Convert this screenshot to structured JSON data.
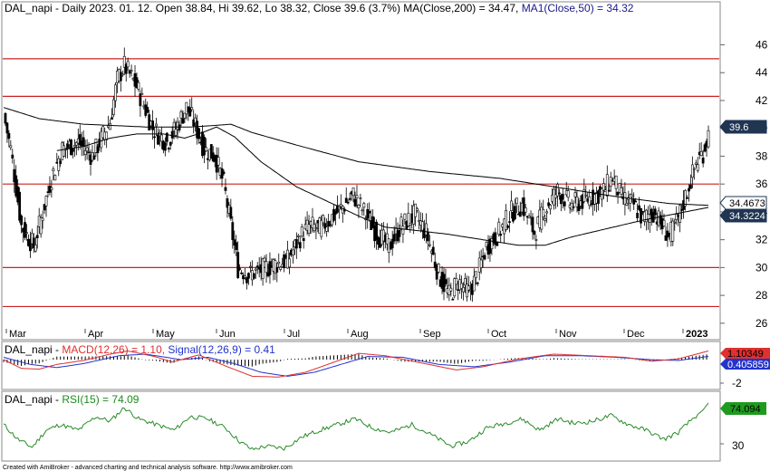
{
  "price_panel": {
    "title_prefix": "DAL_napi - Daily 2023. 01. 12. Open 38.84, Hi 39.62, Lo 38.32, Close 39.6 (3.7%) MA(Close,200) = 34.47, ",
    "title_ma50": "MA1(Close,50) = 34.32",
    "badges": [
      {
        "text": "39.6",
        "value": 39.6,
        "bg": "#1f3552",
        "fg": "#ffffff"
      },
      {
        "text": "34.4673",
        "value": 34.4673,
        "bg": "#ffffff",
        "fg": "#000000"
      },
      {
        "text": "34.3224",
        "value": 34.3224,
        "bg": "#1f3552",
        "fg": "#ffffff"
      }
    ]
  },
  "macd_panel": {
    "label_name": "DAL_napi - ",
    "label_macd": "MACD(12,26) = 1.10,",
    "label_signal": " Signal(12,26,9) = 0.41",
    "tick": "-2",
    "badges": [
      {
        "text": "1.10349",
        "bg": "#e03030",
        "fg": "#000000"
      },
      {
        "text": "0.405859",
        "bg": "#2233cc",
        "fg": "#ffffff"
      }
    ]
  },
  "rsi_panel": {
    "label_name": "DAL_napi - ",
    "label_rsi": "RSI(15) = 74.09",
    "tick": "30",
    "badge": {
      "text": "74.094",
      "bg": "#1f9a1f",
      "fg": "#000000"
    }
  },
  "footer": "Created with AmiBroker - advanced charting and technical analysis software. http://www.amibroker.com",
  "colors": {
    "support_lines": "#cc2222",
    "candles": "#000000",
    "macd": "#e03030",
    "signal": "#2233cc",
    "rsi": "#2a8a2a"
  },
  "chart_data": {
    "type": "candlestick",
    "title": "DAL_napi - Daily 2023. 01. 12. Open 38.84, Hi 39.62, Lo 38.32, Close 39.6 (3.7%) MA(Close,200) = 34.47, MA1(Close,50) = 34.32",
    "y_ticks": [
      26,
      28,
      30,
      32,
      34,
      36,
      38,
      40,
      42,
      44,
      46
    ],
    "ylim": [
      25.6,
      47.4
    ],
    "x_labels": [
      "Mar",
      "Apr",
      "May",
      "Jun",
      "Jul",
      "Aug",
      "Sep",
      "Oct",
      "Nov",
      "Dec",
      "2023"
    ],
    "horizontal_levels": [
      45.0,
      42.3,
      36.0,
      30.0,
      27.2
    ],
    "close_series": [
      {
        "index": 0,
        "value": 41.0
      },
      {
        "index": 4,
        "value": 38.5
      },
      {
        "index": 10,
        "value": 33.0
      },
      {
        "index": 17,
        "value": 31.5
      },
      {
        "index": 22,
        "value": 34.0
      },
      {
        "index": 27,
        "value": 36.5
      },
      {
        "index": 33,
        "value": 38.5
      },
      {
        "index": 42,
        "value": 39.0
      },
      {
        "index": 50,
        "value": 38.0
      },
      {
        "index": 60,
        "value": 40.5
      },
      {
        "index": 64,
        "value": 43.5
      },
      {
        "index": 68,
        "value": 44.5
      },
      {
        "index": 75,
        "value": 43.0
      },
      {
        "index": 84,
        "value": 40.0
      },
      {
        "index": 92,
        "value": 39.0
      },
      {
        "index": 97,
        "value": 40.0
      },
      {
        "index": 103,
        "value": 41.5
      },
      {
        "index": 107,
        "value": 40.5
      },
      {
        "index": 113,
        "value": 38.5
      },
      {
        "index": 119,
        "value": 38.0
      },
      {
        "index": 124,
        "value": 36.0
      },
      {
        "index": 128,
        "value": 33.0
      },
      {
        "index": 132,
        "value": 30.0
      },
      {
        "index": 138,
        "value": 29.5
      },
      {
        "index": 145,
        "value": 29.8
      },
      {
        "index": 152,
        "value": 30.2
      },
      {
        "index": 160,
        "value": 30.5
      },
      {
        "index": 166,
        "value": 32.0
      },
      {
        "index": 172,
        "value": 33.0
      },
      {
        "index": 178,
        "value": 32.8
      },
      {
        "index": 184,
        "value": 33.5
      },
      {
        "index": 192,
        "value": 34.5
      },
      {
        "index": 197,
        "value": 35.2
      },
      {
        "index": 203,
        "value": 34.0
      },
      {
        "index": 210,
        "value": 32.5
      },
      {
        "index": 217,
        "value": 31.5
      },
      {
        "index": 224,
        "value": 33.0
      },
      {
        "index": 232,
        "value": 33.8
      },
      {
        "index": 238,
        "value": 32.5
      },
      {
        "index": 245,
        "value": 29.5
      },
      {
        "index": 251,
        "value": 28.0
      },
      {
        "index": 256,
        "value": 29.0
      },
      {
        "index": 262,
        "value": 28.2
      },
      {
        "index": 267,
        "value": 29.5
      },
      {
        "index": 272,
        "value": 31.5
      },
      {
        "index": 279,
        "value": 32.5
      },
      {
        "index": 286,
        "value": 34.0
      },
      {
        "index": 292,
        "value": 34.5
      },
      {
        "index": 299,
        "value": 32.5
      },
      {
        "index": 305,
        "value": 34.2
      },
      {
        "index": 312,
        "value": 35.5
      },
      {
        "index": 320,
        "value": 34.5
      },
      {
        "index": 330,
        "value": 35.0
      },
      {
        "index": 338,
        "value": 35.5
      },
      {
        "index": 343,
        "value": 36.5
      },
      {
        "index": 348,
        "value": 35.0
      },
      {
        "index": 355,
        "value": 34.5
      },
      {
        "index": 360,
        "value": 33.5
      },
      {
        "index": 366,
        "value": 34.0
      },
      {
        "index": 371,
        "value": 33.0
      },
      {
        "index": 375,
        "value": 32.2
      },
      {
        "index": 380,
        "value": 33.5
      },
      {
        "index": 385,
        "value": 35.5
      },
      {
        "index": 390,
        "value": 37.5
      },
      {
        "index": 394,
        "value": 38.3
      },
      {
        "index": 397,
        "value": 39.6
      }
    ],
    "ma200_series": [
      {
        "index": 0,
        "value": 41.5
      },
      {
        "index": 20,
        "value": 40.7
      },
      {
        "index": 45,
        "value": 40.3
      },
      {
        "index": 80,
        "value": 40.1
      },
      {
        "index": 105,
        "value": 40.1
      },
      {
        "index": 118,
        "value": 40.2
      },
      {
        "index": 128,
        "value": 40.3
      },
      {
        "index": 140,
        "value": 39.7
      },
      {
        "index": 165,
        "value": 38.8
      },
      {
        "index": 200,
        "value": 37.6
      },
      {
        "index": 240,
        "value": 36.9
      },
      {
        "index": 280,
        "value": 36.4
      },
      {
        "index": 310,
        "value": 35.8
      },
      {
        "index": 345,
        "value": 35.1
      },
      {
        "index": 375,
        "value": 34.6
      },
      {
        "index": 397,
        "value": 34.47
      }
    ],
    "ma50_series": [
      {
        "index": 30,
        "value": 38.4
      },
      {
        "index": 45,
        "value": 38.7
      },
      {
        "index": 60,
        "value": 39.3
      },
      {
        "index": 75,
        "value": 39.6
      },
      {
        "index": 90,
        "value": 39.6
      },
      {
        "index": 102,
        "value": 39.3
      },
      {
        "index": 112,
        "value": 39.7
      },
      {
        "index": 120,
        "value": 40.1
      },
      {
        "index": 130,
        "value": 39.4
      },
      {
        "index": 145,
        "value": 37.6
      },
      {
        "index": 165,
        "value": 35.8
      },
      {
        "index": 185,
        "value": 34.6
      },
      {
        "index": 200,
        "value": 33.7
      },
      {
        "index": 215,
        "value": 32.9
      },
      {
        "index": 230,
        "value": 32.7
      },
      {
        "index": 250,
        "value": 32.4
      },
      {
        "index": 270,
        "value": 32.0
      },
      {
        "index": 290,
        "value": 31.6
      },
      {
        "index": 305,
        "value": 31.6
      },
      {
        "index": 320,
        "value": 32.2
      },
      {
        "index": 340,
        "value": 32.8
      },
      {
        "index": 360,
        "value": 33.4
      },
      {
        "index": 380,
        "value": 33.9
      },
      {
        "index": 397,
        "value": 34.32
      }
    ],
    "macd": {
      "ylim": [
        -3.2,
        1.5
      ],
      "ticks": [
        -2
      ],
      "macd_series": [
        {
          "index": 0,
          "value": 0.0
        },
        {
          "index": 10,
          "value": -1.1
        },
        {
          "index": 20,
          "value": -1.2
        },
        {
          "index": 30,
          "value": -0.6
        },
        {
          "index": 45,
          "value": -0.1
        },
        {
          "index": 60,
          "value": 0.7
        },
        {
          "index": 70,
          "value": 1.1
        },
        {
          "index": 85,
          "value": 0.4
        },
        {
          "index": 95,
          "value": -0.3
        },
        {
          "index": 110,
          "value": 0.6
        },
        {
          "index": 125,
          "value": -0.8
        },
        {
          "index": 140,
          "value": -2.1
        },
        {
          "index": 155,
          "value": -2.2
        },
        {
          "index": 170,
          "value": -1.6
        },
        {
          "index": 185,
          "value": -0.4
        },
        {
          "index": 200,
          "value": 0.8
        },
        {
          "index": 215,
          "value": 0.5
        },
        {
          "index": 235,
          "value": -0.4
        },
        {
          "index": 255,
          "value": -1.3
        },
        {
          "index": 270,
          "value": -0.9
        },
        {
          "index": 290,
          "value": 0.1
        },
        {
          "index": 310,
          "value": 0.7
        },
        {
          "index": 330,
          "value": 0.5
        },
        {
          "index": 350,
          "value": 0.3
        },
        {
          "index": 365,
          "value": -0.2
        },
        {
          "index": 380,
          "value": 0.1
        },
        {
          "index": 397,
          "value": 1.1
        }
      ],
      "signal_series": [
        {
          "index": 0,
          "value": 0.3
        },
        {
          "index": 15,
          "value": -0.6
        },
        {
          "index": 30,
          "value": -1.0
        },
        {
          "index": 45,
          "value": -0.5
        },
        {
          "index": 65,
          "value": 0.5
        },
        {
          "index": 80,
          "value": 0.7
        },
        {
          "index": 100,
          "value": 0.0
        },
        {
          "index": 115,
          "value": 0.3
        },
        {
          "index": 130,
          "value": -0.5
        },
        {
          "index": 145,
          "value": -1.6
        },
        {
          "index": 160,
          "value": -2.1
        },
        {
          "index": 175,
          "value": -1.6
        },
        {
          "index": 190,
          "value": -0.6
        },
        {
          "index": 205,
          "value": 0.4
        },
        {
          "index": 225,
          "value": 0.3
        },
        {
          "index": 245,
          "value": -0.6
        },
        {
          "index": 265,
          "value": -0.9
        },
        {
          "index": 285,
          "value": -0.3
        },
        {
          "index": 305,
          "value": 0.5
        },
        {
          "index": 325,
          "value": 0.5
        },
        {
          "index": 345,
          "value": 0.3
        },
        {
          "index": 365,
          "value": 0.0
        },
        {
          "index": 380,
          "value": -0.1
        },
        {
          "index": 397,
          "value": 0.41
        }
      ]
    },
    "rsi": {
      "ylim": [
        26,
        78
      ],
      "ticks": [
        30
      ],
      "series": [
        {
          "index": 0,
          "value": 55
        },
        {
          "index": 8,
          "value": 42
        },
        {
          "index": 16,
          "value": 35
        },
        {
          "index": 24,
          "value": 50
        },
        {
          "index": 32,
          "value": 55
        },
        {
          "index": 42,
          "value": 50
        },
        {
          "index": 52,
          "value": 62
        },
        {
          "index": 60,
          "value": 58
        },
        {
          "index": 68,
          "value": 70
        },
        {
          "index": 76,
          "value": 60
        },
        {
          "index": 86,
          "value": 55
        },
        {
          "index": 96,
          "value": 50
        },
        {
          "index": 105,
          "value": 62
        },
        {
          "index": 115,
          "value": 60
        },
        {
          "index": 125,
          "value": 52
        },
        {
          "index": 133,
          "value": 40
        },
        {
          "index": 140,
          "value": 33
        },
        {
          "index": 148,
          "value": 36
        },
        {
          "index": 158,
          "value": 34
        },
        {
          "index": 168,
          "value": 44
        },
        {
          "index": 178,
          "value": 50
        },
        {
          "index": 188,
          "value": 55
        },
        {
          "index": 198,
          "value": 60
        },
        {
          "index": 208,
          "value": 52
        },
        {
          "index": 218,
          "value": 48
        },
        {
          "index": 230,
          "value": 55
        },
        {
          "index": 242,
          "value": 45
        },
        {
          "index": 252,
          "value": 36
        },
        {
          "index": 262,
          "value": 40
        },
        {
          "index": 272,
          "value": 52
        },
        {
          "index": 282,
          "value": 56
        },
        {
          "index": 292,
          "value": 60
        },
        {
          "index": 302,
          "value": 50
        },
        {
          "index": 312,
          "value": 60
        },
        {
          "index": 322,
          "value": 56
        },
        {
          "index": 332,
          "value": 58
        },
        {
          "index": 342,
          "value": 63
        },
        {
          "index": 352,
          "value": 55
        },
        {
          "index": 362,
          "value": 50
        },
        {
          "index": 372,
          "value": 42
        },
        {
          "index": 380,
          "value": 48
        },
        {
          "index": 388,
          "value": 60
        },
        {
          "index": 394,
          "value": 68
        },
        {
          "index": 397,
          "value": 74.09
        }
      ]
    }
  }
}
